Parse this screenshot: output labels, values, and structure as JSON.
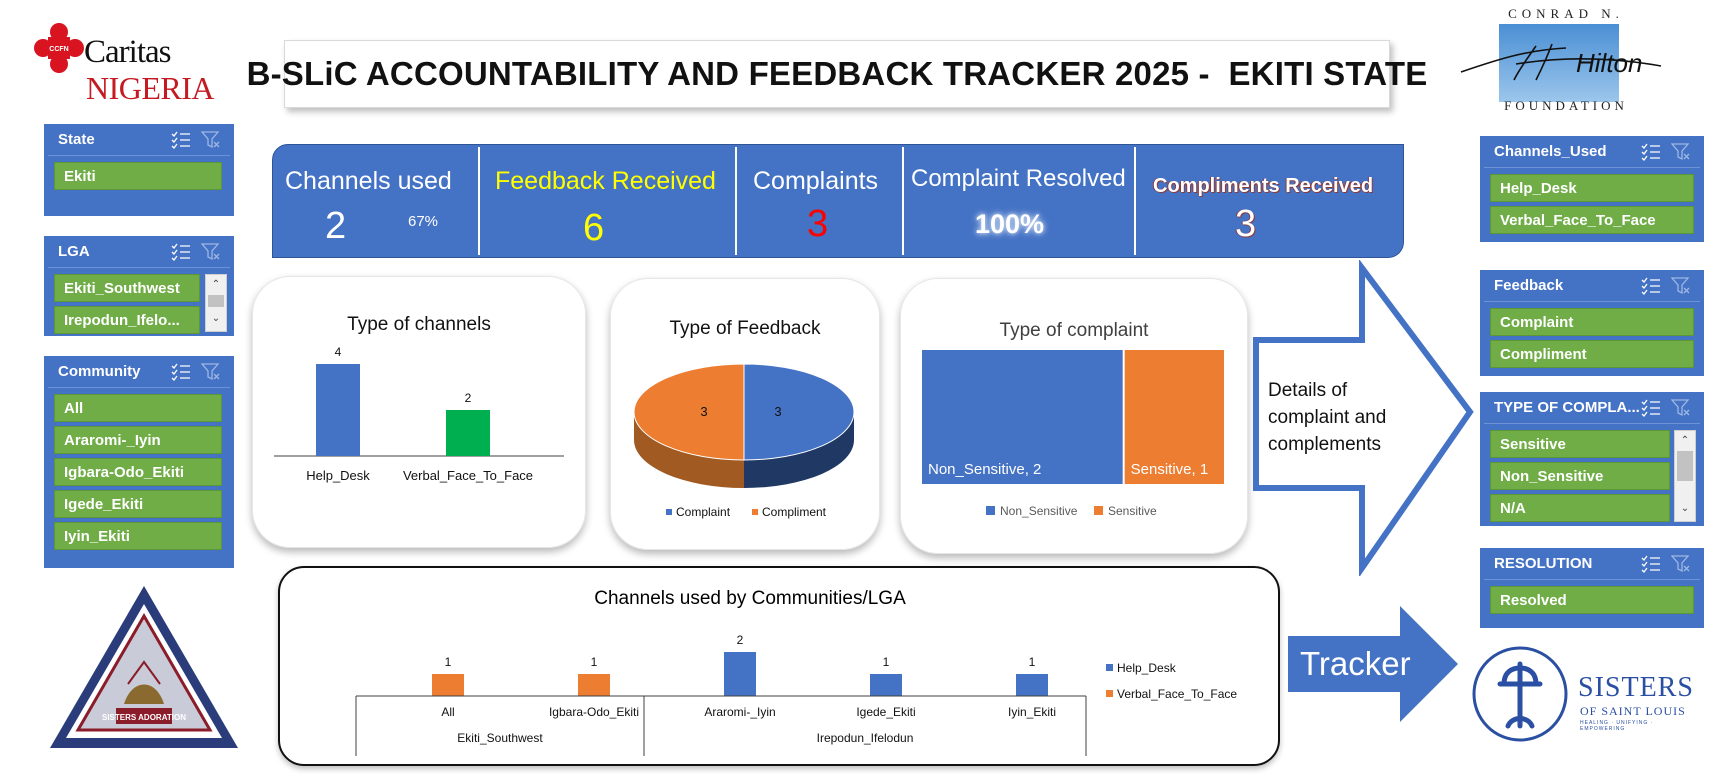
{
  "title": "B-SLiC ACCOUNTABILITY AND FEEDBACK TRACKER 2025 -  EKITI STATE",
  "logos": {
    "caritas": {
      "line1": "Caritas",
      "line2": "NIGERIA",
      "badge": "CCFN"
    },
    "hilton": {
      "top": "CONRAD N.",
      "script": "Hilton",
      "bottom": "FOUNDATION"
    },
    "adoration": {
      "text": "SISTERS ADORATION"
    },
    "sisters": {
      "line1": "SISTERS",
      "line2": "OF SAINT LOUIS",
      "line3": "HEALING · UNIFYING · EMPOWERING"
    }
  },
  "slicers": {
    "state": {
      "title": "State",
      "items": [
        "Ekiti"
      ]
    },
    "lga": {
      "title": "LGA",
      "items": [
        "Ekiti_Southwest",
        "Irepodun_Ifelo..."
      ]
    },
    "community": {
      "title": "Community",
      "items": [
        "All",
        "Araromi-_Iyin",
        "Igbara-Odo_Ekiti",
        "Igede_Ekiti",
        "Iyin_Ekiti"
      ]
    },
    "channels_used": {
      "title": "Channels_Used",
      "items": [
        "Help_Desk",
        "Verbal_Face_To_Face"
      ]
    },
    "feedback": {
      "title": "Feedback",
      "items": [
        "Complaint",
        "Compliment"
      ]
    },
    "type_of_complaint": {
      "title": "TYPE OF COMPLA...",
      "items": [
        "Sensitive",
        "Non_Sensitive",
        "N/A"
      ]
    },
    "resolution": {
      "title": "RESOLUTION",
      "items": [
        "Resolved"
      ]
    }
  },
  "kpis": {
    "channels_used": {
      "label": "Channels used",
      "value": "2",
      "pct": "67%"
    },
    "feedback_received": {
      "label": "Feedback Received",
      "value": "6"
    },
    "complaints": {
      "label": "Complaints",
      "value": "3"
    },
    "complaint_resolved": {
      "label": "Complaint Resolved",
      "value": "100%"
    },
    "compliments_received": {
      "label": "Compliments Received",
      "value": "3"
    }
  },
  "colors": {
    "accent": "#4472c4",
    "slicer_item": "#70ad47",
    "orange": "#ed7d31",
    "green": "#00b050",
    "feedback_yellow": "#ffff00",
    "complaint_red": "#ff0000"
  },
  "arrow_text": [
    "Details of",
    "complaint and",
    "complements"
  ],
  "tracker_label": "Tracker",
  "chart_data": [
    {
      "type": "bar",
      "title": "Type of channels",
      "categories": [
        "Help_Desk",
        "Verbal_Face_To_Face"
      ],
      "values": [
        4,
        2
      ],
      "colors": [
        "#4472c4",
        "#00b050"
      ]
    },
    {
      "type": "pie",
      "title": "Type of Feedback",
      "labels": [
        "Complaint",
        "Compliment"
      ],
      "values": [
        3,
        3
      ],
      "colors": [
        "#4472c4",
        "#ed7d31"
      ],
      "legend": "bottom"
    },
    {
      "type": "treemap",
      "title": "Type of complaint",
      "labels": [
        "Non_Sensitive",
        "Sensitive"
      ],
      "values": [
        2,
        1
      ],
      "colors": [
        "#4472c4",
        "#ed7d31"
      ],
      "legend": "bottom"
    },
    {
      "type": "bar",
      "title": "Channels used by Communities/LGA",
      "categories": [
        "All",
        "Igbara-Odo_Ekiti",
        "Araromi-_Iyin",
        "Igede_Ekiti",
        "Iyin_Ekiti"
      ],
      "groups": [
        {
          "name": "Ekiti_Southwest",
          "span": 2
        },
        {
          "name": "Irepodun_Ifelodun",
          "span": 3
        }
      ],
      "series": [
        {
          "name": "Help_Desk",
          "color": "#4472c4",
          "values": [
            null,
            null,
            2,
            1,
            1
          ]
        },
        {
          "name": "Verbal_Face_To_Face",
          "color": "#ed7d31",
          "values": [
            1,
            1,
            null,
            null,
            null
          ]
        }
      ],
      "legend": "right"
    }
  ]
}
